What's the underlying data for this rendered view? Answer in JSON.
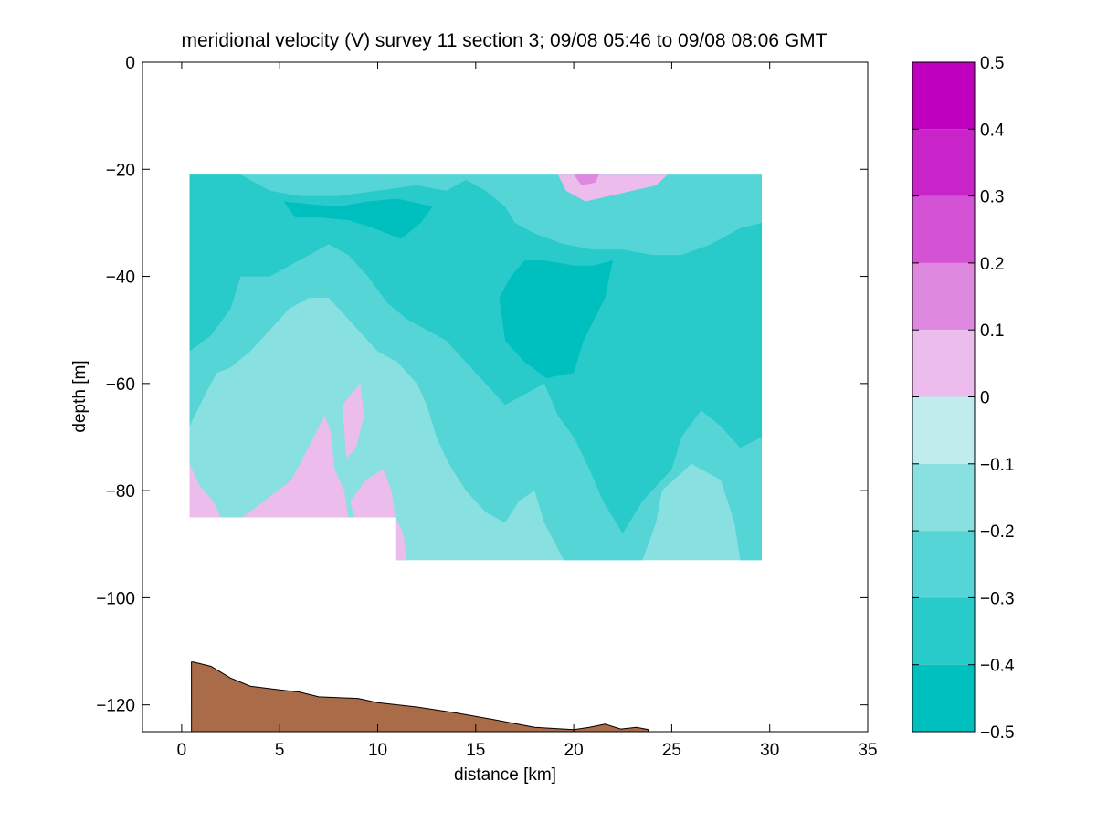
{
  "chart_data": {
    "type": "contour",
    "title": "meridional velocity (V) survey 11 section 3; 09/08 05:46 to 09/08 08:06 GMT",
    "xlabel": "distance [km]",
    "ylabel": "depth [m]",
    "xlim": [
      -2,
      35
    ],
    "ylim": [
      -125,
      0
    ],
    "x_ticks": [
      "0",
      "5",
      "10",
      "15",
      "20",
      "25",
      "30",
      "35"
    ],
    "x_tick_values": [
      0,
      5,
      10,
      15,
      20,
      25,
      30,
      35
    ],
    "y_ticks": [
      "0",
      "−20",
      "−40",
      "−60",
      "−80",
      "−100",
      "−120"
    ],
    "y_tick_values": [
      0,
      -20,
      -40,
      -60,
      -80,
      -100,
      -120
    ],
    "colorbar": {
      "range": [
        -0.5,
        0.5
      ],
      "tick_labels": [
        "0.5",
        "0.4",
        "0.3",
        "0.2",
        "0.1",
        "0",
        "−0.1",
        "−0.2",
        "−0.3",
        "−0.4",
        "−0.5"
      ],
      "tick_values": [
        0.5,
        0.4,
        0.3,
        0.2,
        0.1,
        0,
        -0.1,
        -0.2,
        -0.3,
        -0.4,
        -0.5
      ],
      "levels": [
        {
          "min": 0.4,
          "max": 0.5,
          "color": "#bf00bf"
        },
        {
          "min": 0.3,
          "max": 0.4,
          "color": "#c924c9"
        },
        {
          "min": 0.2,
          "max": 0.3,
          "color": "#d452d4"
        },
        {
          "min": 0.1,
          "max": 0.2,
          "color": "#df88df"
        },
        {
          "min": 0.0,
          "max": 0.1,
          "color": "#ecbdec"
        },
        {
          "min": -0.1,
          "max": 0.0,
          "color": "#bfecec"
        },
        {
          "min": -0.2,
          "max": -0.1,
          "color": "#88e0e0"
        },
        {
          "min": -0.3,
          "max": -0.2,
          "color": "#55d5d5"
        },
        {
          "min": -0.4,
          "max": -0.3,
          "color": "#28caca"
        },
        {
          "min": -0.5,
          "max": -0.4,
          "color": "#00bfbf"
        }
      ]
    },
    "data_extent": {
      "x": [
        0.4,
        29.6
      ],
      "top_depth": -21,
      "bottom_depth_segments": [
        {
          "x": [
            0.4,
            10.9
          ],
          "depth": -85
        },
        {
          "x": [
            10.9,
            29.6
          ],
          "depth": -93
        }
      ]
    },
    "regions": [
      {
        "level": -0.1,
        "x": [
          0.4,
          29.6
        ],
        "y": [
          -21,
          -93
        ]
      },
      {
        "level": -0.2,
        "x": [
          0.4,
          29.6
        ],
        "y": [
          -21,
          -72
        ],
        "note": "bulk of upper field"
      },
      {
        "level": -0.3,
        "x": [
          0.4,
          29.6
        ],
        "y": [
          -21,
          -82
        ]
      },
      {
        "level": -0.4,
        "x": [
          5,
          13
        ],
        "y": [
          -26,
          -33
        ]
      },
      {
        "level": -0.4,
        "x": [
          16,
          22
        ],
        "y": [
          -37,
          -62
        ]
      },
      {
        "level": 0.1,
        "x": [
          18.5,
          24
        ],
        "y": [
          -21,
          -26
        ]
      },
      {
        "level": 0.2,
        "x": [
          20,
          21.5
        ],
        "y": [
          -21,
          -24
        ]
      },
      {
        "level": 0.1,
        "x": [
          0.4,
          7.5
        ],
        "y": [
          -66,
          -85
        ]
      },
      {
        "level": 0.1,
        "x": [
          8.2,
          9.2
        ],
        "y": [
          -60,
          -74
        ]
      },
      {
        "level": 0.1,
        "x": [
          8.2,
          10.9
        ],
        "y": [
          -76,
          -85
        ]
      }
    ],
    "bathymetry": {
      "color": "#a96b48",
      "x": [
        0.5,
        0.6,
        1.5,
        2.5,
        3.5,
        5,
        6,
        7,
        9,
        10,
        12,
        14,
        16,
        18,
        20,
        20.8,
        21.6,
        22.4,
        23.2,
        23.8
      ],
      "depth": [
        -112,
        -112,
        -112.8,
        -115,
        -116.5,
        -117.2,
        -117.6,
        -118.5,
        -118.8,
        -119.6,
        -120.4,
        -121.5,
        -122.8,
        -124.2,
        -124.6,
        -124.2,
        -123.6,
        -124.5,
        -124.2,
        -124.6
      ]
    }
  }
}
